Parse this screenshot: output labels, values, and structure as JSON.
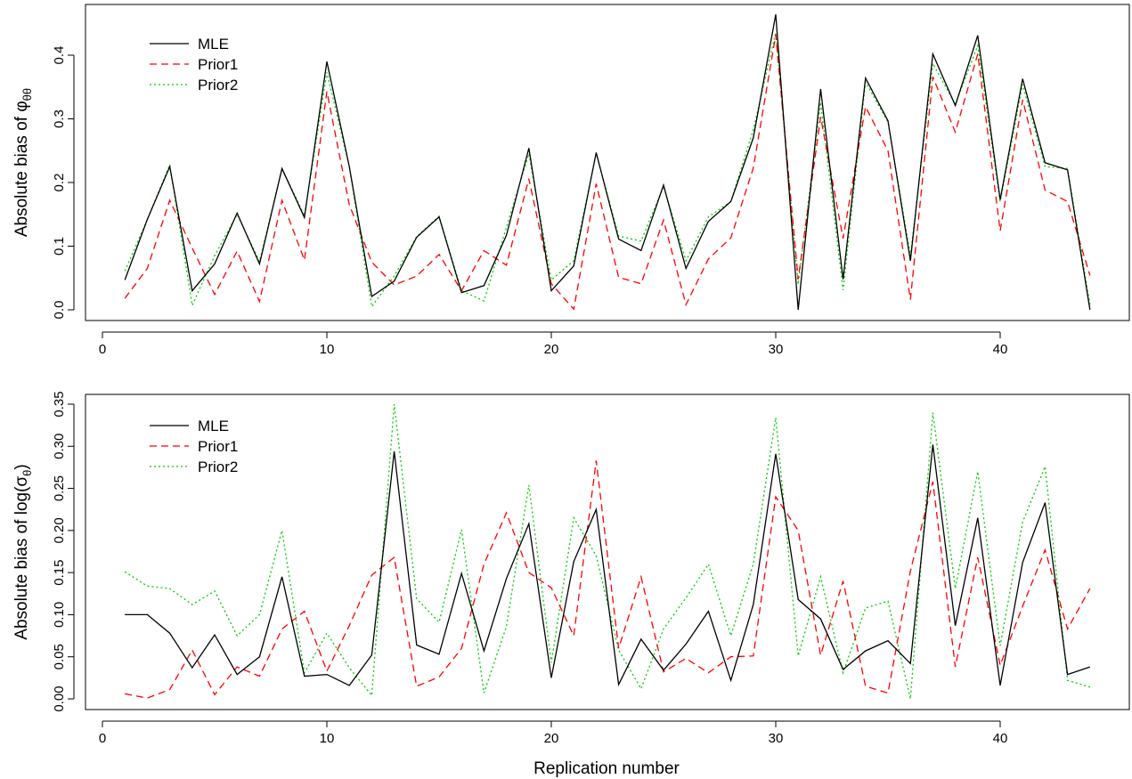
{
  "colors": {
    "MLE": "#000000",
    "Prior1": "#ff0000",
    "Prior2": "#00cc00"
  },
  "xlabel": "Replication number",
  "chart_data": [
    {
      "type": "line",
      "ylabel_prefix": "Absolute bias of ",
      "ylabel_symbol": "φ",
      "ylabel_sub": "θθ",
      "ylabel_suffix": "",
      "x": [
        1,
        2,
        3,
        4,
        5,
        6,
        7,
        8,
        9,
        10,
        11,
        12,
        13,
        14,
        15,
        16,
        17,
        18,
        19,
        20,
        21,
        22,
        23,
        24,
        25,
        26,
        27,
        28,
        29,
        30,
        31,
        32,
        33,
        34,
        35,
        36,
        37,
        38,
        39,
        40,
        41,
        42,
        43,
        44
      ],
      "xlim": [
        0,
        45
      ],
      "xticks": [
        0,
        10,
        20,
        30,
        40
      ],
      "ylim": [
        0,
        0.46
      ],
      "yticks": [
        0.0,
        0.1,
        0.2,
        0.3,
        0.4
      ],
      "ytick_labels": [
        "0.0",
        "0.1",
        "0.2",
        "0.3",
        "0.4"
      ],
      "legend_position": "top-left",
      "series": [
        {
          "name": "MLE",
          "values": [
            0.047,
            0.142,
            0.225,
            0.03,
            0.072,
            0.152,
            0.072,
            0.222,
            0.145,
            0.39,
            0.225,
            0.021,
            0.045,
            0.114,
            0.146,
            0.027,
            0.038,
            0.117,
            0.254,
            0.03,
            0.069,
            0.247,
            0.111,
            0.093,
            0.196,
            0.065,
            0.139,
            0.17,
            0.27,
            0.464,
            0.0,
            0.347,
            0.048,
            0.364,
            0.297,
            0.077,
            0.402,
            0.321,
            0.431,
            0.173,
            0.363,
            0.231,
            0.22,
            0.0
          ]
        },
        {
          "name": "Prior1",
          "values": [
            0.018,
            0.065,
            0.172,
            0.097,
            0.024,
            0.092,
            0.013,
            0.172,
            0.078,
            0.343,
            0.165,
            0.075,
            0.039,
            0.053,
            0.087,
            0.03,
            0.093,
            0.07,
            0.206,
            0.041,
            0.001,
            0.198,
            0.051,
            0.041,
            0.141,
            0.008,
            0.08,
            0.113,
            0.223,
            0.432,
            0.048,
            0.303,
            0.112,
            0.319,
            0.25,
            0.016,
            0.366,
            0.279,
            0.402,
            0.124,
            0.33,
            0.188,
            0.17,
            0.054
          ]
        },
        {
          "name": "Prior2",
          "values": [
            0.061,
            0.142,
            0.228,
            0.007,
            0.085,
            0.15,
            0.076,
            0.222,
            0.148,
            0.373,
            0.225,
            0.005,
            0.053,
            0.115,
            0.147,
            0.03,
            0.014,
            0.13,
            0.245,
            0.047,
            0.077,
            0.246,
            0.116,
            0.108,
            0.194,
            0.077,
            0.146,
            0.17,
            0.283,
            0.436,
            0.04,
            0.326,
            0.031,
            0.358,
            0.295,
            0.085,
            0.387,
            0.323,
            0.415,
            0.17,
            0.354,
            0.225,
            0.222,
            0.008
          ]
        }
      ]
    },
    {
      "type": "line",
      "ylabel_prefix": "Absolute bias of log(",
      "ylabel_symbol": "σ",
      "ylabel_sub": "θ",
      "ylabel_suffix": ")",
      "x": [
        1,
        2,
        3,
        4,
        5,
        6,
        7,
        8,
        9,
        10,
        11,
        12,
        13,
        14,
        15,
        16,
        17,
        18,
        19,
        20,
        21,
        22,
        23,
        24,
        25,
        26,
        27,
        28,
        29,
        30,
        31,
        32,
        33,
        34,
        35,
        36,
        37,
        38,
        39,
        40,
        41,
        42,
        43,
        44
      ],
      "xlim": [
        0,
        45
      ],
      "xticks": [
        0,
        10,
        20,
        30,
        40
      ],
      "ylim": [
        -0.01,
        0.35
      ],
      "yticks": [
        0.0,
        0.05,
        0.1,
        0.15,
        0.2,
        0.25,
        0.3,
        0.35
      ],
      "ytick_labels": [
        "0.00",
        "0.05",
        "0.10",
        "0.15",
        "0.20",
        "0.25",
        "0.30",
        "0.35"
      ],
      "legend_position": "top-left",
      "series": [
        {
          "name": "MLE",
          "values": [
            0.1,
            0.1,
            0.078,
            0.037,
            0.076,
            0.029,
            0.05,
            0.145,
            0.027,
            0.029,
            0.016,
            0.052,
            0.294,
            0.064,
            0.053,
            0.149,
            0.057,
            0.143,
            0.208,
            0.025,
            0.163,
            0.225,
            0.017,
            0.071,
            0.034,
            0.065,
            0.104,
            0.022,
            0.112,
            0.291,
            0.118,
            0.095,
            0.035,
            0.057,
            0.069,
            0.042,
            0.302,
            0.087,
            0.215,
            0.016,
            0.162,
            0.233,
            0.029,
            0.038
          ]
        },
        {
          "name": "Prior1",
          "values": [
            0.006,
            0.001,
            0.011,
            0.058,
            0.005,
            0.038,
            0.027,
            0.083,
            0.104,
            0.033,
            0.087,
            0.147,
            0.168,
            0.015,
            0.026,
            0.06,
            0.16,
            0.221,
            0.15,
            0.132,
            0.075,
            0.283,
            0.06,
            0.145,
            0.032,
            0.048,
            0.031,
            0.05,
            0.051,
            0.24,
            0.2,
            0.052,
            0.14,
            0.015,
            0.007,
            0.152,
            0.258,
            0.038,
            0.168,
            0.04,
            0.11,
            0.177,
            0.083,
            0.131
          ]
        },
        {
          "name": "Prior2",
          "values": [
            0.151,
            0.134,
            0.131,
            0.112,
            0.128,
            0.075,
            0.1,
            0.2,
            0.031,
            0.078,
            0.037,
            0.004,
            0.35,
            0.119,
            0.091,
            0.201,
            0.007,
            0.086,
            0.254,
            0.043,
            0.215,
            0.17,
            0.058,
            0.012,
            0.083,
            0.12,
            0.16,
            0.075,
            0.16,
            0.334,
            0.051,
            0.145,
            0.031,
            0.108,
            0.116,
            0.0,
            0.34,
            0.131,
            0.27,
            0.063,
            0.21,
            0.276,
            0.022,
            0.014
          ]
        }
      ]
    }
  ]
}
